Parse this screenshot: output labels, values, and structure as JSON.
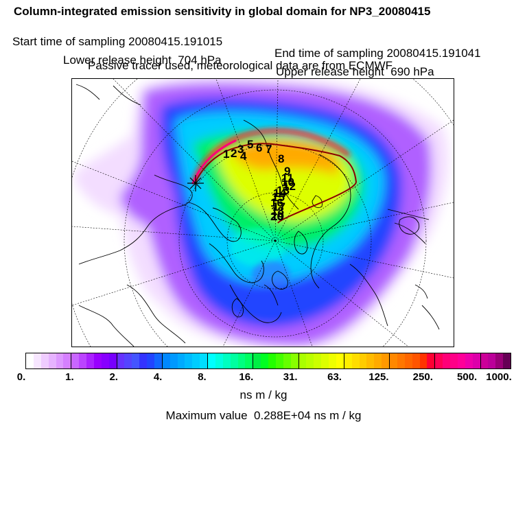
{
  "header": {
    "title": "Column-integrated emission sensitivity in global domain for NP3_20080415",
    "start_time": "Start time of sampling 20080415.191015",
    "end_time": "End time of sampling 20080415.191041",
    "lower_height": "Lower release height  704 hPa",
    "upper_height": "Upper release height  690 hPa",
    "tracer_note": "Passive tracer used, meteorological data are from ECMWF"
  },
  "map": {
    "projection": "polar stereographic",
    "trajectory_labels": [
      "1",
      "2",
      "3",
      "4",
      "5",
      "6",
      "7",
      "8",
      "9",
      "10",
      "11",
      "12",
      "13",
      "14",
      "15",
      "16",
      "17",
      "18",
      "19",
      "20"
    ],
    "colors": {
      "background": "#ffffff",
      "coastline": "#000000",
      "gridline": "#000000",
      "trajectory": "#8b0000"
    }
  },
  "colorbar": {
    "colors": [
      "#ffffff",
      "#f7e6ff",
      "#efccff",
      "#e6b3ff",
      "#dd99ff",
      "#d580ff",
      "#c966ff",
      "#bb44ff",
      "#aa22ff",
      "#9900ff",
      "#8800ff",
      "#7700ff",
      "#6633ff",
      "#5544ff",
      "#4455ff",
      "#3333ff",
      "#2244ff",
      "#1166ff",
      "#0088ff",
      "#0099ff",
      "#00aaff",
      "#00bbff",
      "#00ccff",
      "#00ddff",
      "#00ffff",
      "#00ffe0",
      "#00ffc0",
      "#00ffa0",
      "#00ff80",
      "#00ff60",
      "#00ee44",
      "#00ff22",
      "#22ff00",
      "#44ff00",
      "#66ff00",
      "#88ff00",
      "#aaff00",
      "#bbff00",
      "#ccff00",
      "#ddff00",
      "#eeff00",
      "#ffff00",
      "#ffee00",
      "#ffdd00",
      "#ffcc00",
      "#ffbb00",
      "#ffaa00",
      "#ff9900",
      "#ff8800",
      "#ff7700",
      "#ff6600",
      "#ff5500",
      "#ff3300",
      "#ff0033",
      "#ff0055",
      "#ff0077",
      "#ff0088",
      "#ff0099",
      "#ee00aa",
      "#dd00aa",
      "#cc0099",
      "#bb0099",
      "#990077",
      "#660055"
    ],
    "tick_labels": [
      "0.",
      "1.",
      "2.",
      "4.",
      "8.",
      "16.",
      "31.",
      "63.",
      "125.",
      "250.",
      "500.",
      "1000."
    ],
    "units": "ns m / kg"
  },
  "footer": {
    "maximum": "Maximum value  0.288E+04 ns m / kg"
  }
}
